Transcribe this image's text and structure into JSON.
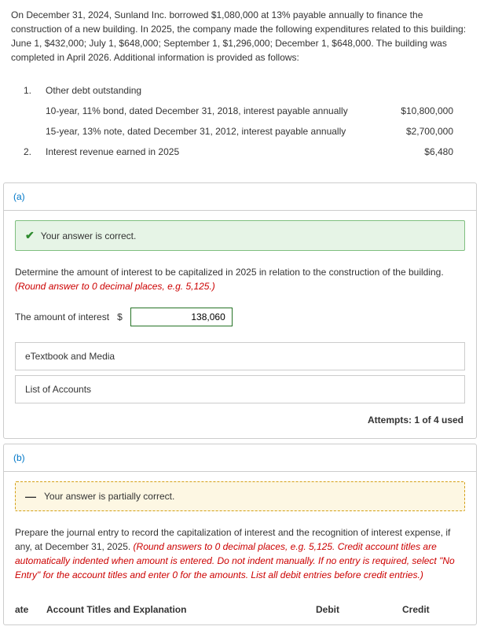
{
  "problem": {
    "intro": "On December 31, 2024, Sunland Inc. borrowed $1,080,000 at 13% payable annually to finance the construction of a new building. In 2025, the company made the following expenditures related to this building: June 1, $432,000; July 1, $648,000; September 1, $1,296,000; December 1, $648,000. The building was completed in April 2026. Additional information is provided as follows:"
  },
  "info": {
    "items": [
      {
        "num": "1.",
        "text": "Other debt outstanding",
        "amount": ""
      },
      {
        "num": "",
        "text": "10-year, 11% bond, dated December 31, 2018, interest payable annually",
        "amount": "$10,800,000"
      },
      {
        "num": "",
        "text": "15-year, 13% note, dated December 31, 2012, interest payable annually",
        "amount": "$2,700,000"
      },
      {
        "num": "2.",
        "text": "Interest revenue earned in 2025",
        "amount": "$6,480"
      }
    ]
  },
  "partA": {
    "label": "(a)",
    "correct_msg": "Your answer is correct.",
    "question_plain": "Determine the amount of interest to be capitalized in 2025 in relation to the construction of the building. ",
    "question_hint": "(Round answer to 0 decimal places, e.g. 5,125.)",
    "answer_label": "The amount of interest",
    "currency": "$",
    "answer_value": "138,060",
    "etextbook": "eTextbook and Media",
    "list_accounts": "List of Accounts",
    "attempts": "Attempts: 1 of 4 used"
  },
  "partB": {
    "label": "(b)",
    "partial_msg": "Your answer is partially correct.",
    "question_plain": "Prepare the journal entry to record the capitalization of interest and the recognition of interest expense, if any, at December 31, 2025. ",
    "question_hint": "(Round answers to 0 decimal places, e.g. 5,125. Credit account titles are automatically indented when amount is entered. Do not indent manually. If no entry is required, select \"No Entry\" for the account titles and enter 0 for the amounts. List all debit entries before credit entries.)",
    "cols": {
      "date": "ate",
      "acct": "Account Titles and Explanation",
      "debit": "Debit",
      "credit": "Credit"
    }
  }
}
